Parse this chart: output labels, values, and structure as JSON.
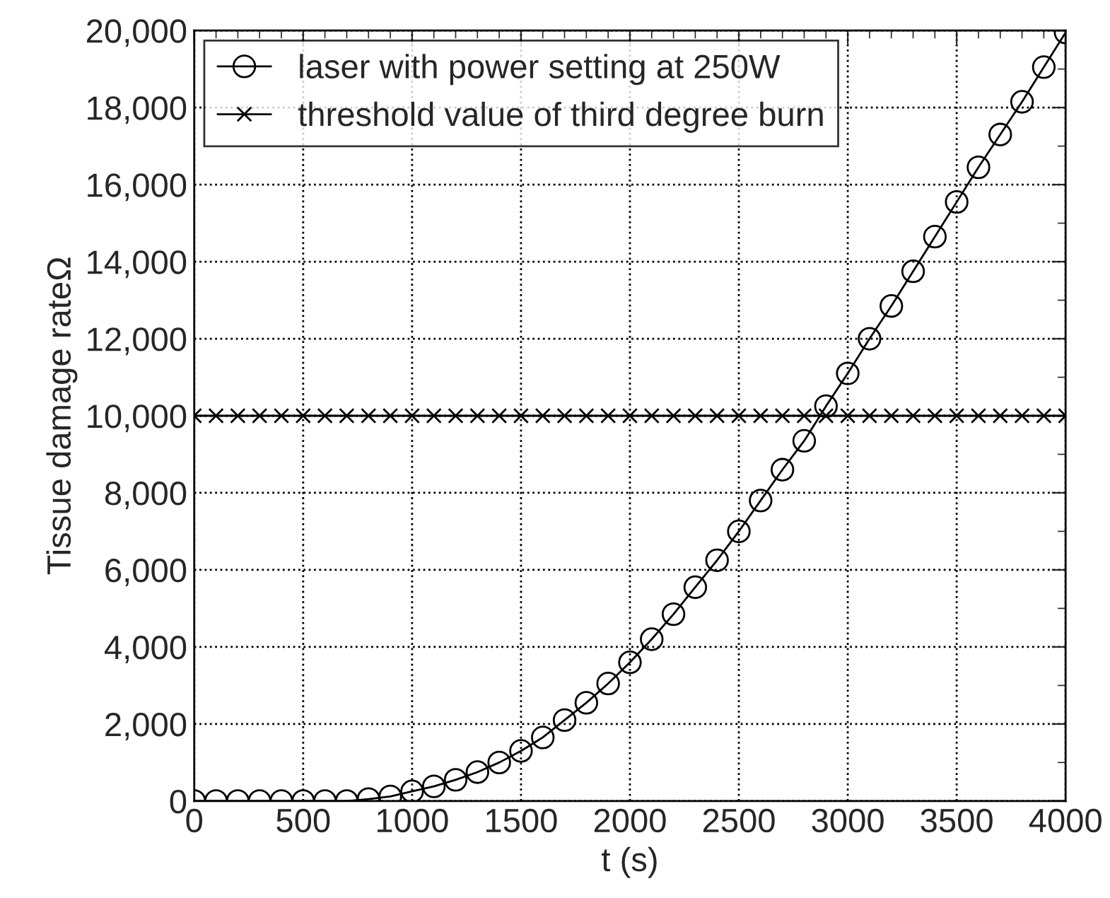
{
  "chart_data": {
    "type": "line",
    "xlabel": "t (s)",
    "ylabel": "Tissue damage rateΩ",
    "x": [
      0,
      100,
      200,
      300,
      400,
      500,
      600,
      700,
      800,
      900,
      1000,
      1100,
      1200,
      1300,
      1400,
      1500,
      1600,
      1700,
      1800,
      1900,
      2000,
      2100,
      2200,
      2300,
      2400,
      2500,
      2600,
      2700,
      2800,
      2900,
      3000,
      3100,
      3200,
      3300,
      3400,
      3500,
      3600,
      3700,
      3800,
      3900,
      4000
    ],
    "series": [
      {
        "name": "laser with power setting at 250W",
        "color": "#000000",
        "marker": "circle",
        "values": [
          0,
          0,
          0,
          0,
          0,
          0,
          0,
          0,
          50,
          120,
          250,
          380,
          550,
          750,
          1000,
          1300,
          1650,
          2100,
          2550,
          3050,
          3600,
          4200,
          4850,
          5550,
          6250,
          7000,
          7800,
          8600,
          9350,
          10250,
          11100,
          12000,
          12850,
          13750,
          14650,
          15550,
          16450,
          17300,
          18150,
          19050,
          19950
        ]
      },
      {
        "name": "threshold value of third degree burn",
        "color": "#000000",
        "marker": "cross",
        "values": [
          10000,
          10000,
          10000,
          10000,
          10000,
          10000,
          10000,
          10000,
          10000,
          10000,
          10000,
          10000,
          10000,
          10000,
          10000,
          10000,
          10000,
          10000,
          10000,
          10000,
          10000,
          10000,
          10000,
          10000,
          10000,
          10000,
          10000,
          10000,
          10000,
          10000,
          10000,
          10000,
          10000,
          10000,
          10000,
          10000,
          10000,
          10000,
          10000,
          10000,
          10000
        ]
      }
    ],
    "xlim": [
      0,
      4000
    ],
    "xticks": [
      0,
      500,
      1000,
      1500,
      2000,
      2500,
      3000,
      3500,
      4000
    ],
    "ylim": [
      0,
      20000
    ],
    "yticks": [
      {
        "value": 0,
        "label": "0"
      },
      {
        "value": 2000,
        "label": "2,000"
      },
      {
        "value": 4000,
        "label": "4,000"
      },
      {
        "value": 6000,
        "label": "6,000"
      },
      {
        "value": 8000,
        "label": "8,000"
      },
      {
        "value": 10000,
        "label": "10,000"
      },
      {
        "value": 12000,
        "label": "12,000"
      },
      {
        "value": 14000,
        "label": "14,000"
      },
      {
        "value": 16000,
        "label": "16,000"
      },
      {
        "value": 18000,
        "label": "18,000"
      },
      {
        "value": 20000,
        "label": "20,000"
      }
    ],
    "grid": true,
    "legend": "top left",
    "line_style": "solid"
  }
}
